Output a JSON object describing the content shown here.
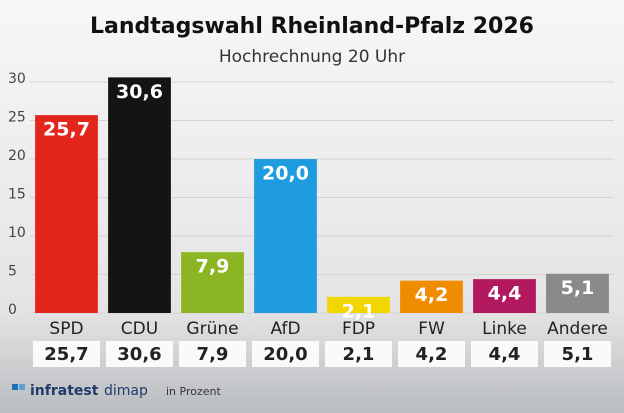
{
  "chart_data": {
    "type": "bar",
    "title": "Landtagswahl Rheinland-Pfalz 2026",
    "subtitle": "Hochrechnung 20 Uhr",
    "categories": [
      "SPD",
      "CDU",
      "Grüne",
      "AfD",
      "FDP",
      "FW",
      "Linke",
      "Andere"
    ],
    "values": [
      25.7,
      30.6,
      7.9,
      20.0,
      2.1,
      4.2,
      4.4,
      5.1
    ],
    "value_labels": [
      "25,7",
      "30,6",
      "7,9",
      "20,0",
      "2,1",
      "4,2",
      "4,4",
      "5,1"
    ],
    "colors": [
      "#e3261c",
      "#141414",
      "#8cb524",
      "#1f9be0",
      "#f2d600",
      "#f08c00",
      "#b3195e",
      "#8a8a8a"
    ],
    "ylim": [
      0,
      30
    ],
    "yticks": [
      0,
      5,
      10,
      15,
      20,
      25,
      30
    ],
    "grid": true,
    "source": [
      "infratest",
      "dimap"
    ],
    "note": "in Prozent"
  }
}
